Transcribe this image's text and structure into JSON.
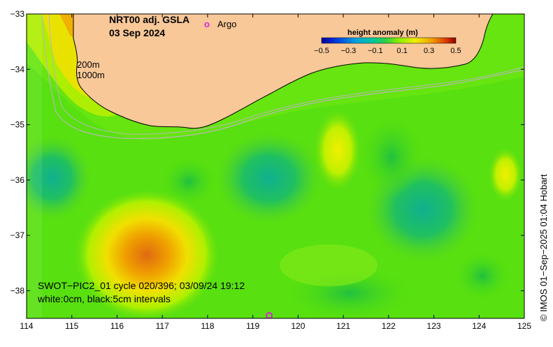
{
  "title": {
    "product": "NRT00 adj. GSLA",
    "date": "03 Sep 2024"
  },
  "argo_legend": {
    "marker": "o",
    "label": "Argo",
    "color": "#e020e0"
  },
  "colorbar": {
    "title": "height anomaly (m)",
    "ticks": [
      "−0.5",
      "−0.3",
      "−0.1",
      "0.1",
      "0.3",
      "0.5"
    ],
    "range": [
      -0.5,
      0.5
    ],
    "colors": [
      "#0000a0",
      "#0050e0",
      "#00a8e0",
      "#00c8a0",
      "#20c860",
      "#60e020",
      "#a0f000",
      "#f0f000",
      "#f0b000",
      "#f07000",
      "#d02000",
      "#900000"
    ]
  },
  "isobaths": {
    "shallow": "200m",
    "deep": "1000m"
  },
  "swot_caption": {
    "line1": "SWOT−PIC2_01 cycle 020/396; 03/09/24 19:12",
    "line2": "white:0cm, black:5cm intervals"
  },
  "credit": "© IMOS 01−Sep−2025 01:04 Hobart",
  "axes": {
    "x_ticks": [
      "114",
      "115",
      "116",
      "117",
      "118",
      "119",
      "120",
      "121",
      "122",
      "123",
      "124",
      "125"
    ],
    "y_ticks": [
      "−33",
      "−34",
      "−35",
      "−36",
      "−37",
      "−38"
    ],
    "xlim": [
      114,
      125
    ],
    "ylim": [
      -38.5,
      -33
    ]
  },
  "colors": {
    "land": "#f8c898",
    "ocean_base": "#50e010",
    "positive_high": "#e07010",
    "negative": "#10c070"
  }
}
